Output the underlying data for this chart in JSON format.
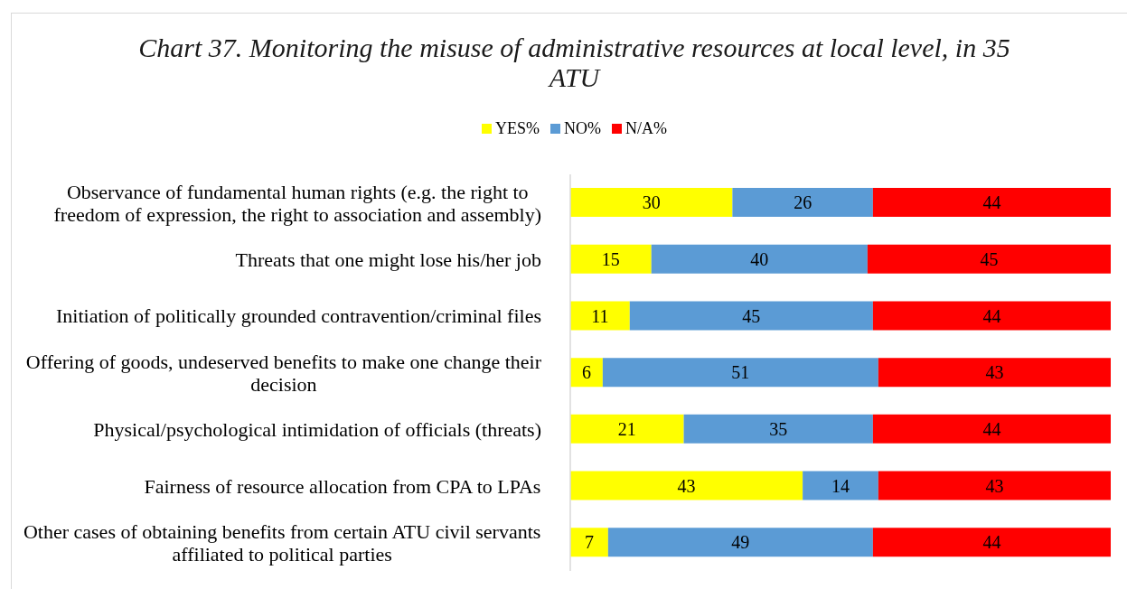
{
  "chart_data": {
    "type": "bar",
    "orientation": "horizontal",
    "stacked": true,
    "title": "Chart 37. Monitoring the misuse of administrative resources at local level, in 35 ATU",
    "categories": [
      "Observance of fundamental human rights (e.g. the right to freedom of expression, the right to association and assembly)",
      "Threats that one might lose his/her job",
      "Initiation of politically grounded contravention/criminal files",
      "Offering of goods, undeserved benefits to make one change their decision",
      "Physical/psychological intimidation of officials (threats)",
      "Fairness of resource allocation from CPA to LPAs",
      "Other cases of obtaining benefits from certain ATU civil servants affiliated to political parties"
    ],
    "series": [
      {
        "name": "YES%",
        "color": "#ffff00",
        "values": [
          30,
          15,
          11,
          6,
          21,
          43,
          7
        ]
      },
      {
        "name": "NO%",
        "color": "#5b9bd5",
        "values": [
          26,
          40,
          45,
          51,
          35,
          14,
          49
        ]
      },
      {
        "name": "N/A%",
        "color": "#ff0000",
        "values": [
          44,
          45,
          44,
          43,
          44,
          43,
          44
        ]
      }
    ],
    "xlim": [
      0,
      100
    ],
    "data_labels": true,
    "legend": "top",
    "tick_labels": "y"
  }
}
